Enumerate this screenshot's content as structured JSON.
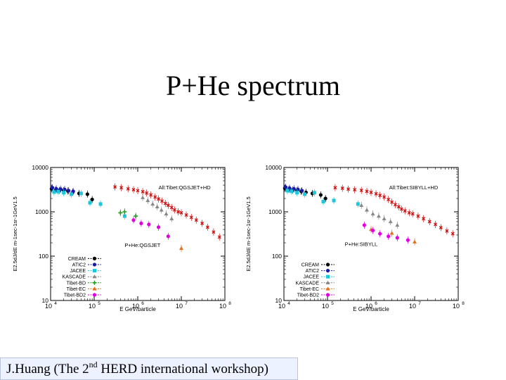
{
  "title": "P+He spectrum",
  "footer": {
    "pre": "J.Huang (The  2",
    "sup": "nd",
    "post": "  HERD international workshop)"
  },
  "chart_data": [
    {
      "type": "scatter",
      "title": "",
      "xlabel": "E GeV/particle",
      "ylabel": "E2.5dJ/dE m-1sec-1sr-1GeV1.5",
      "xscale": "log",
      "yscale": "log",
      "xlim": [
        10000,
        100000000
      ],
      "ylim": [
        10,
        10000
      ],
      "x_ticks": [
        {
          "v": 10000,
          "b": "10",
          "e": "4"
        },
        {
          "v": 100000,
          "b": "10",
          "e": "5"
        },
        {
          "v": 1000000,
          "b": "10",
          "e": "6"
        },
        {
          "v": 10000000,
          "b": "10",
          "e": "7"
        },
        {
          "v": 100000000,
          "b": "10",
          "e": "8"
        }
      ],
      "y_ticks": [
        {
          "v": 10,
          "t": "10"
        },
        {
          "v": 100,
          "t": "100"
        },
        {
          "v": 1000,
          "t": "1000"
        },
        {
          "v": 10000,
          "t": "10000"
        }
      ],
      "annotations": [
        {
          "text": "All:Tibet:QGSJET+HD",
          "x": 3000000,
          "y": 3600
        },
        {
          "text": "P+He:QGSJET",
          "x": 500000,
          "y": 180
        }
      ],
      "legend_position": "lower-left",
      "series": [
        {
          "name": "CREAM",
          "color": "#000000",
          "marker": "circle",
          "points": [
            [
              10500,
              3300
            ],
            [
              13000,
              3100
            ],
            [
              16000,
              3050
            ],
            [
              20000,
              3000
            ],
            [
              25000,
              2950
            ],
            [
              32000,
              2750
            ],
            [
              45000,
              2600
            ],
            [
              70000,
              2500
            ],
            [
              90000,
              1900
            ]
          ]
        },
        {
          "name": "ATIC2",
          "color": "#1a1aa6",
          "marker": "circle",
          "points": [
            [
              11000,
              3500
            ],
            [
              13500,
              3300
            ],
            [
              17000,
              3250
            ],
            [
              21000,
              3200
            ],
            [
              26000,
              3000
            ],
            [
              33000,
              2900
            ]
          ]
        },
        {
          "name": "JACEE",
          "color": "#19c8dc",
          "marker": "square",
          "points": [
            [
              12000,
              2800
            ],
            [
              15000,
              2850
            ],
            [
              20000,
              2700
            ],
            [
              30000,
              2500
            ],
            [
              50000,
              2600
            ],
            [
              80000,
              1600
            ],
            [
              140000,
              1500
            ],
            [
              500000,
              800
            ]
          ]
        },
        {
          "name": "KASCADE",
          "color": "#888888",
          "marker": "triangle",
          "points": [
            [
              1300000,
              2100
            ],
            [
              1700000,
              1800
            ],
            [
              2200000,
              1500
            ],
            [
              2800000,
              1300
            ],
            [
              3500000,
              1100
            ],
            [
              4500000,
              900
            ],
            [
              6000000,
              700
            ]
          ]
        },
        {
          "name": "Tibet-BD",
          "color": "#1e9e1e",
          "marker": "cross",
          "points": [
            [
              400000,
              950
            ],
            [
              500000,
              1000
            ],
            [
              900000,
              800
            ]
          ]
        },
        {
          "name": "Tibet-EC",
          "color": "#e07020",
          "marker": "triangle",
          "points": [
            [
              10000000,
              150
            ]
          ]
        },
        {
          "name": "Tibet-BD2",
          "color": "#e000e0",
          "marker": "circle",
          "points": [
            [
              800000,
              650
            ],
            [
              1200000,
              550
            ],
            [
              1800000,
              520
            ],
            [
              3000000,
              450
            ],
            [
              5000000,
              280
            ]
          ]
        },
        {
          "name": "All:Tibet:QGSJET+HD",
          "color": "#d01010",
          "marker": "x",
          "points": [
            [
              300000,
              3650
            ],
            [
              420000,
              3500
            ],
            [
              600000,
              3300
            ],
            [
              800000,
              3150
            ],
            [
              1000000,
              3000
            ],
            [
              1300000,
              2850
            ],
            [
              1600000,
              2650
            ],
            [
              2000000,
              2400
            ],
            [
              2500000,
              2150
            ],
            [
              3000000,
              1950
            ],
            [
              3600000,
              1750
            ],
            [
              4300000,
              1550
            ],
            [
              5000000,
              1400
            ],
            [
              6000000,
              1250
            ],
            [
              7000000,
              1100
            ],
            [
              8500000,
              1000
            ],
            [
              10000000,
              950
            ],
            [
              13000000,
              850
            ],
            [
              17000000,
              750
            ],
            [
              22000000,
              650
            ],
            [
              30000000,
              550
            ],
            [
              40000000,
              450
            ],
            [
              55000000,
              350
            ],
            [
              75000000,
              270
            ]
          ]
        }
      ]
    },
    {
      "type": "scatter",
      "title": "",
      "xlabel": "E GeV/particle",
      "ylabel": "E2.5dJ/dE m-1sec-1sr-1GeV1.5",
      "xscale": "log",
      "yscale": "log",
      "xlim": [
        10000,
        100000000
      ],
      "ylim": [
        10,
        10000
      ],
      "x_ticks": [
        {
          "v": 10000,
          "b": "10",
          "e": "4"
        },
        {
          "v": 100000,
          "b": "10",
          "e": "5"
        },
        {
          "v": 1000000,
          "b": "10",
          "e": "6"
        },
        {
          "v": 10000000,
          "b": "10",
          "e": "7"
        },
        {
          "v": 100000000,
          "b": "10",
          "e": "8"
        }
      ],
      "y_ticks": [
        {
          "v": 10,
          "t": "10"
        },
        {
          "v": 100,
          "t": "100"
        },
        {
          "v": 1000,
          "t": "1000"
        },
        {
          "v": 10000,
          "t": "10000"
        }
      ],
      "annotations": [
        {
          "text": "All:Tibet:SIBYLL+HD",
          "x": 2600000,
          "y": 3600
        },
        {
          "text": "P+He:SIBYLL",
          "x": 250000,
          "y": 190
        }
      ],
      "legend_position": "lower-left",
      "series": [
        {
          "name": "CREAM",
          "color": "#000000",
          "marker": "circle",
          "points": [
            [
              10500,
              3400
            ],
            [
              13000,
              3200
            ],
            [
              16000,
              3100
            ],
            [
              20000,
              3000
            ],
            [
              25000,
              2900
            ],
            [
              32000,
              2750
            ],
            [
              45000,
              2600
            ],
            [
              70000,
              2400
            ],
            [
              90000,
              2000
            ]
          ]
        },
        {
          "name": "ATIC2",
          "color": "#1a1aa6",
          "marker": "circle",
          "points": [
            [
              11000,
              3600
            ],
            [
              13500,
              3400
            ],
            [
              17000,
              3300
            ],
            [
              21000,
              3200
            ],
            [
              26000,
              3000
            ]
          ]
        },
        {
          "name": "JACEE",
          "color": "#19c8dc",
          "marker": "square",
          "points": [
            [
              12000,
              3000
            ],
            [
              15000,
              2900
            ],
            [
              20000,
              2700
            ],
            [
              30000,
              2500
            ],
            [
              50000,
              2700
            ],
            [
              80000,
              1700
            ],
            [
              140000,
              1800
            ],
            [
              500000,
              1500
            ]
          ]
        },
        {
          "name": "KASCADE",
          "color": "#888888",
          "marker": "triangle",
          "points": [
            [
              600000,
              1400
            ],
            [
              800000,
              1100
            ],
            [
              1100000,
              900
            ],
            [
              1500000,
              800
            ],
            [
              2000000,
              700
            ],
            [
              2800000,
              600
            ],
            [
              4000000,
              500
            ]
          ]
        },
        {
          "name": "Tibet-EC",
          "color": "#e07020",
          "marker": "triangle",
          "points": [
            [
              1000000,
              400
            ],
            [
              3000000,
              330
            ],
            [
              10000000,
              210
            ]
          ]
        },
        {
          "name": "Tibet-BD2",
          "color": "#e000e0",
          "marker": "circle",
          "points": [
            [
              700000,
              500
            ],
            [
              1100000,
              380
            ],
            [
              1600000,
              320
            ],
            [
              2500000,
              280
            ],
            [
              4000000,
              260
            ],
            [
              7000000,
              230
            ]
          ]
        },
        {
          "name": "All:Tibet:SIBYLL+HD",
          "color": "#d01010",
          "marker": "x",
          "points": [
            [
              150000,
              3500
            ],
            [
              220000,
              3400
            ],
            [
              300000,
              3250
            ],
            [
              420000,
              3150
            ],
            [
              600000,
              3050
            ],
            [
              800000,
              2900
            ],
            [
              1000000,
              2750
            ],
            [
              1300000,
              2550
            ],
            [
              1600000,
              2350
            ],
            [
              2000000,
              2150
            ],
            [
              2500000,
              1900
            ],
            [
              3000000,
              1650
            ],
            [
              3600000,
              1450
            ],
            [
              4300000,
              1300
            ],
            [
              5000000,
              1150
            ],
            [
              6000000,
              1050
            ],
            [
              7500000,
              950
            ],
            [
              9000000,
              900
            ],
            [
              12000000,
              800
            ],
            [
              16000000,
              700
            ],
            [
              22000000,
              600
            ],
            [
              30000000,
              520
            ],
            [
              40000000,
              440
            ],
            [
              55000000,
              370
            ],
            [
              75000000,
              320
            ]
          ]
        }
      ]
    }
  ]
}
